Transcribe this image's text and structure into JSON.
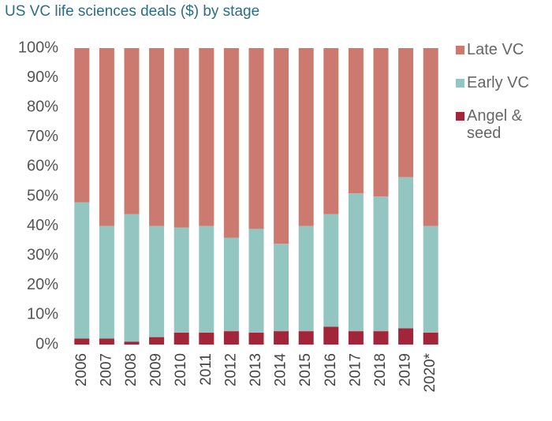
{
  "chart_data": {
    "type": "bar",
    "stacked": true,
    "title": "US VC life sciences deals ($) by stage",
    "categories": [
      "2006",
      "2007",
      "2008",
      "2009",
      "2010",
      "2011",
      "2012",
      "2013",
      "2014",
      "2015",
      "2016",
      "2017",
      "2018",
      "2019",
      "2020*"
    ],
    "series": [
      {
        "name": "Angel & seed",
        "color": "#a3253a",
        "values": [
          2,
          2,
          1,
          2.5,
          4,
          4,
          4.5,
          4,
          4.5,
          4.5,
          6,
          4.5,
          4.5,
          5.5,
          4
        ]
      },
      {
        "name": "Early VC",
        "color": "#93c6c1",
        "values": [
          46,
          38,
          43,
          37.5,
          35.5,
          36,
          31.5,
          35,
          29.5,
          35.5,
          38,
          46.5,
          45.5,
          51,
          36
        ]
      },
      {
        "name": "Late VC",
        "color": "#cc7a70",
        "values": [
          52,
          60,
          56,
          60,
          60.5,
          60,
          64,
          61,
          66,
          60,
          56,
          49,
          50,
          43.5,
          60
        ]
      }
    ],
    "ylim": [
      0,
      100
    ],
    "yticks": [
      {
        "value": 0,
        "label": "0%"
      },
      {
        "value": 10,
        "label": "10%"
      },
      {
        "value": 20,
        "label": "20%"
      },
      {
        "value": 30,
        "label": "30%"
      },
      {
        "value": 40,
        "label": "40%"
      },
      {
        "value": 50,
        "label": "50%"
      },
      {
        "value": 60,
        "label": "60%"
      },
      {
        "value": 70,
        "label": "70%"
      },
      {
        "value": 80,
        "label": "80%"
      },
      {
        "value": 90,
        "label": "90%"
      },
      {
        "value": 100,
        "label": "100%"
      }
    ],
    "grid": false,
    "legend": "right"
  }
}
